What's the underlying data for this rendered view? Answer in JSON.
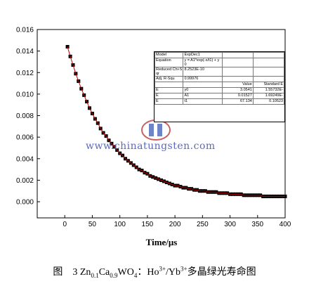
{
  "chart_data": {
    "type": "scatter",
    "title": "",
    "xlabel": "Time/μs",
    "ylabel": "",
    "xlim": [
      -50,
      400
    ],
    "ylim": [
      -0.0015,
      0.016
    ],
    "xticks": [
      "0",
      "50",
      "100",
      "150",
      "200",
      "250",
      "300",
      "350",
      "400"
    ],
    "yticks": [
      "0.000",
      "0.002",
      "0.004",
      "0.006",
      "0.008",
      "0.010",
      "0.012",
      "0.014",
      "0.016"
    ],
    "series": [
      {
        "marker_color": "#000000",
        "fit_color": "#c00000",
        "x": [
          5,
          10,
          15,
          20,
          25,
          30,
          35,
          40,
          45,
          50,
          55,
          60,
          65,
          70,
          75,
          80,
          85,
          90,
          95,
          100,
          105,
          110,
          115,
          120,
          125,
          130,
          135,
          140,
          145,
          150,
          155,
          160,
          165,
          170,
          175,
          180,
          185,
          190,
          195,
          200,
          205,
          210,
          215,
          220,
          225,
          230,
          235,
          240,
          245,
          250,
          255,
          260,
          265,
          270,
          275,
          280,
          285,
          290,
          295,
          300,
          305,
          310,
          315,
          320,
          325,
          330,
          335,
          340,
          345,
          350,
          355,
          360,
          365,
          370,
          375,
          380,
          385,
          390,
          395,
          400
        ],
        "values": [
          0.0144,
          0.0135,
          0.0127,
          0.0119,
          0.0112,
          0.0105,
          0.0099,
          0.0093,
          0.0087,
          0.0082,
          0.0077,
          0.0073,
          0.0068,
          0.0064,
          0.0061,
          0.0057,
          0.0054,
          0.0051,
          0.0048,
          0.0045,
          0.0043,
          0.004,
          0.0038,
          0.0036,
          0.0034,
          0.0032,
          0.003,
          0.0029,
          0.0027,
          0.0026,
          0.0024,
          0.0023,
          0.0022,
          0.0021,
          0.002,
          0.0019,
          0.0018,
          0.0017,
          0.0016,
          0.0015,
          0.0015,
          0.0014,
          0.0013,
          0.0013,
          0.0012,
          0.0012,
          0.0011,
          0.0011,
          0.001,
          0.001,
          0.001,
          0.0009,
          0.0009,
          0.0009,
          0.0009,
          0.0008,
          0.0008,
          0.0008,
          0.0008,
          0.0007,
          0.0007,
          0.0007,
          0.0007,
          0.0007,
          0.0006,
          0.0006,
          0.0006,
          0.0006,
          0.0006,
          0.0006,
          0.0006,
          0.0005,
          0.0005,
          0.0005,
          0.0005,
          0.0005,
          0.0005,
          0.0005,
          0.0005,
          0.0005
        ]
      }
    ]
  },
  "fit_table": {
    "rows": [
      [
        "Model",
        "ExpDec1",
        "",
        ""
      ],
      [
        "Equation",
        "y = A1*exp(-x/t1) + y0",
        "",
        ""
      ],
      [
        "Reduced Chi-Sqr",
        "8.2523E-10",
        "",
        ""
      ],
      [
        "Adj. R-Squ",
        "0.99976",
        "",
        ""
      ],
      [
        "",
        "",
        "Value",
        "Standard E"
      ],
      [
        "E",
        "y0",
        "3.0541",
        "1.55732E-"
      ],
      [
        "E",
        "A1",
        "0.01527",
        "1.69249E-"
      ],
      [
        "E",
        "t1",
        "67.134",
        "0.10523"
      ]
    ]
  },
  "watermark": "www.chinatungsten.com",
  "caption": {
    "prefix": "图　3 Zn",
    "sub1": "0.1",
    "mid1": "Ca",
    "sub2": "0.9",
    "mid2": "WO",
    "sub3": "4",
    "mid3": "：Ho",
    "sup1": "3+",
    "mid4": "/Yb",
    "sup2": "3+",
    "suffix": "多晶绿光寿命图"
  }
}
